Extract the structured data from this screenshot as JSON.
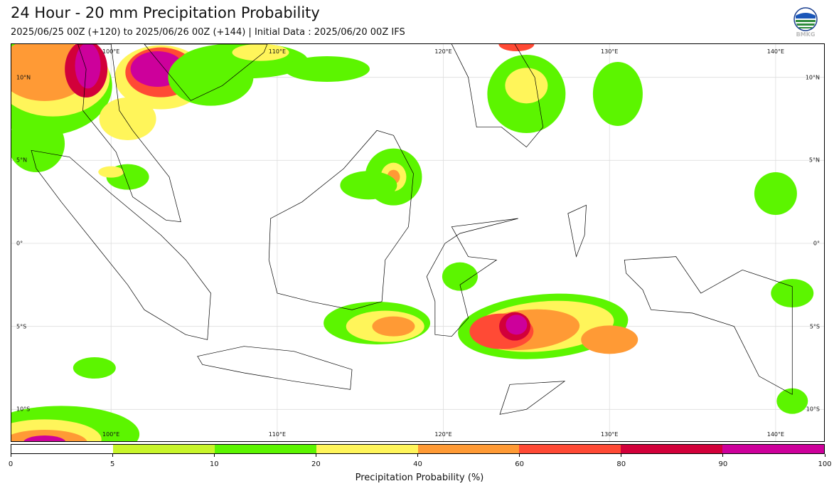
{
  "header": {
    "title": "24 Hour - 20 mm Precipitation Probability",
    "subtitle": "2025/06/25 00Z (+120) to 2025/06/26 00Z (+144) | Initial Data : 2025/06/20 00Z IFS",
    "logo_text": "BMKG"
  },
  "map": {
    "lon_range": [
      94,
      143
    ],
    "lat_range": [
      -12,
      12
    ],
    "lon_ticks": [
      100,
      110,
      120,
      130,
      140
    ],
    "lat_ticks": [
      10,
      5,
      0,
      -5,
      -10
    ],
    "lon_labels": [
      "100°E",
      "110°E",
      "120°E",
      "130°E",
      "140°E"
    ],
    "lat_labels_left": [
      "10°N",
      "5°N",
      "0°",
      "5°S",
      "10°S"
    ],
    "lat_labels_right": [
      "10°N",
      "5°N",
      "0°",
      "5°S",
      "10°S"
    ],
    "grid": true,
    "land_color": "#ffffff",
    "coast_color": "#000000"
  },
  "colorbar": {
    "ticks": [
      "0",
      "5",
      "10",
      "20",
      "40",
      "60",
      "80",
      "90",
      "100"
    ],
    "colors": [
      "#ffffff",
      "#c8f52a",
      "#5cf500",
      "#fff55a",
      "#ff9a35",
      "#ff4a35",
      "#d2003a",
      "#cd009b"
    ],
    "label": "Precipitation Probability (%)"
  }
}
